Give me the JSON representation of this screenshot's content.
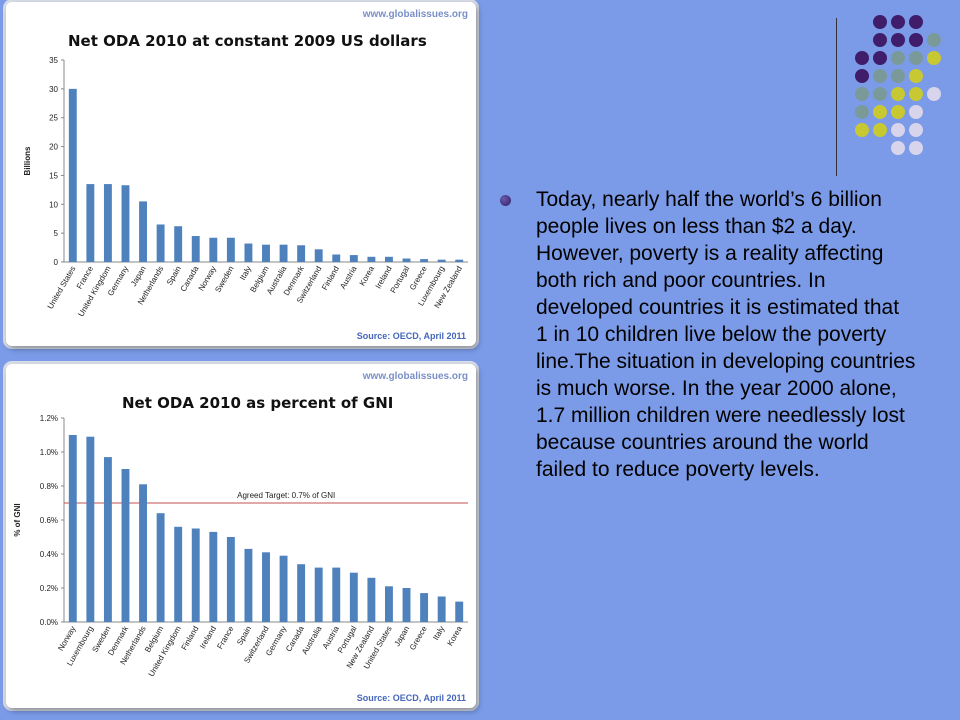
{
  "palette": {
    "background": "#7b9be8",
    "bar": "#4f81bd",
    "target_line": "#c0504d",
    "dot_purple": "#3f1d6b",
    "dot_gray": "#7a9a9a",
    "dot_yellow": "#c8c832",
    "dot_lavender": "#d8d4ec"
  },
  "decor_dots": {
    "rows": [
      [
        "purple",
        "purple",
        "purple"
      ],
      [
        "purple",
        "purple",
        "purple",
        "gray"
      ],
      [
        "purple",
        "purple",
        "gray",
        "gray",
        "yellow"
      ],
      [
        "purple",
        "gray",
        "gray",
        "yellow"
      ],
      [
        "gray",
        "gray",
        "yellow",
        "yellow",
        "lavender"
      ],
      [
        "gray",
        "yellow",
        "yellow",
        "lavender"
      ],
      [
        "yellow",
        "yellow",
        "lavender",
        "lavender"
      ],
      [
        "lavender",
        "lavender"
      ]
    ]
  },
  "body_text": "Today, nearly half the world’s 6 billion people lives on less than $2 a day. However, poverty is a reality affecting both rich and poor countries. In developed countries it is estimated that 1 in 10 children live below the poverty line.The situation in developing countries is much worse. In the year 2000 alone, 1.7 million children were needlessly lost because countries around the world failed to reduce poverty levels.",
  "chart_data": [
    {
      "type": "bar",
      "title": "Net ODA 2010 at constant 2009 US dollars",
      "site": "www.globalissues.org",
      "source": "Source: OECD, April 2011",
      "xlabel": "",
      "ylabel": "Billions",
      "ylim": [
        0,
        35
      ],
      "yticks": [
        "0",
        "5",
        "10",
        "15",
        "20",
        "25",
        "30",
        "35"
      ],
      "grid": false,
      "categories": [
        "United States",
        "France",
        "United Kingdom",
        "Germany",
        "Japan",
        "Netherlands",
        "Spain",
        "Canada",
        "Norway",
        "Sweden",
        "Italy",
        "Belgium",
        "Australia",
        "Denmark",
        "Switzerland",
        "Finland",
        "Austria",
        "Korea",
        "Ireland",
        "Portugal",
        "Greece",
        "Luxembourg",
        "New Zealand"
      ],
      "values": [
        30.0,
        13.5,
        13.5,
        13.3,
        10.5,
        6.5,
        6.2,
        4.5,
        4.2,
        4.2,
        3.2,
        3.0,
        3.0,
        2.9,
        2.2,
        1.3,
        1.2,
        0.9,
        0.9,
        0.6,
        0.5,
        0.4,
        0.4
      ]
    },
    {
      "type": "bar",
      "title": "Net ODA 2010 as percent of GNI",
      "site": "www.globalissues.org",
      "source": "Source: OECD, April 2011",
      "xlabel": "",
      "ylabel": "% of GNI",
      "ylim": [
        0,
        1.2
      ],
      "yticks": [
        "0.0%",
        "0.2%",
        "0.4%",
        "0.6%",
        "0.8%",
        "1.0%",
        "1.2%"
      ],
      "grid": false,
      "target": {
        "value": 0.7,
        "label": "Agreed Target: 0.7% of GNI"
      },
      "categories": [
        "Norway",
        "Luxembourg",
        "Sweden",
        "Denmark",
        "Netherlands",
        "Belgium",
        "United Kingdom",
        "Finland",
        "Ireland",
        "France",
        "Spain",
        "Switzerland",
        "Germany",
        "Canada",
        "Australia",
        "Austria",
        "Portugal",
        "New Zealand",
        "United States",
        "Japan",
        "Greece",
        "Italy",
        "Korea"
      ],
      "values": [
        1.1,
        1.09,
        0.97,
        0.9,
        0.81,
        0.64,
        0.56,
        0.55,
        0.53,
        0.5,
        0.43,
        0.41,
        0.39,
        0.34,
        0.32,
        0.32,
        0.29,
        0.26,
        0.21,
        0.2,
        0.17,
        0.15,
        0.12
      ]
    }
  ]
}
